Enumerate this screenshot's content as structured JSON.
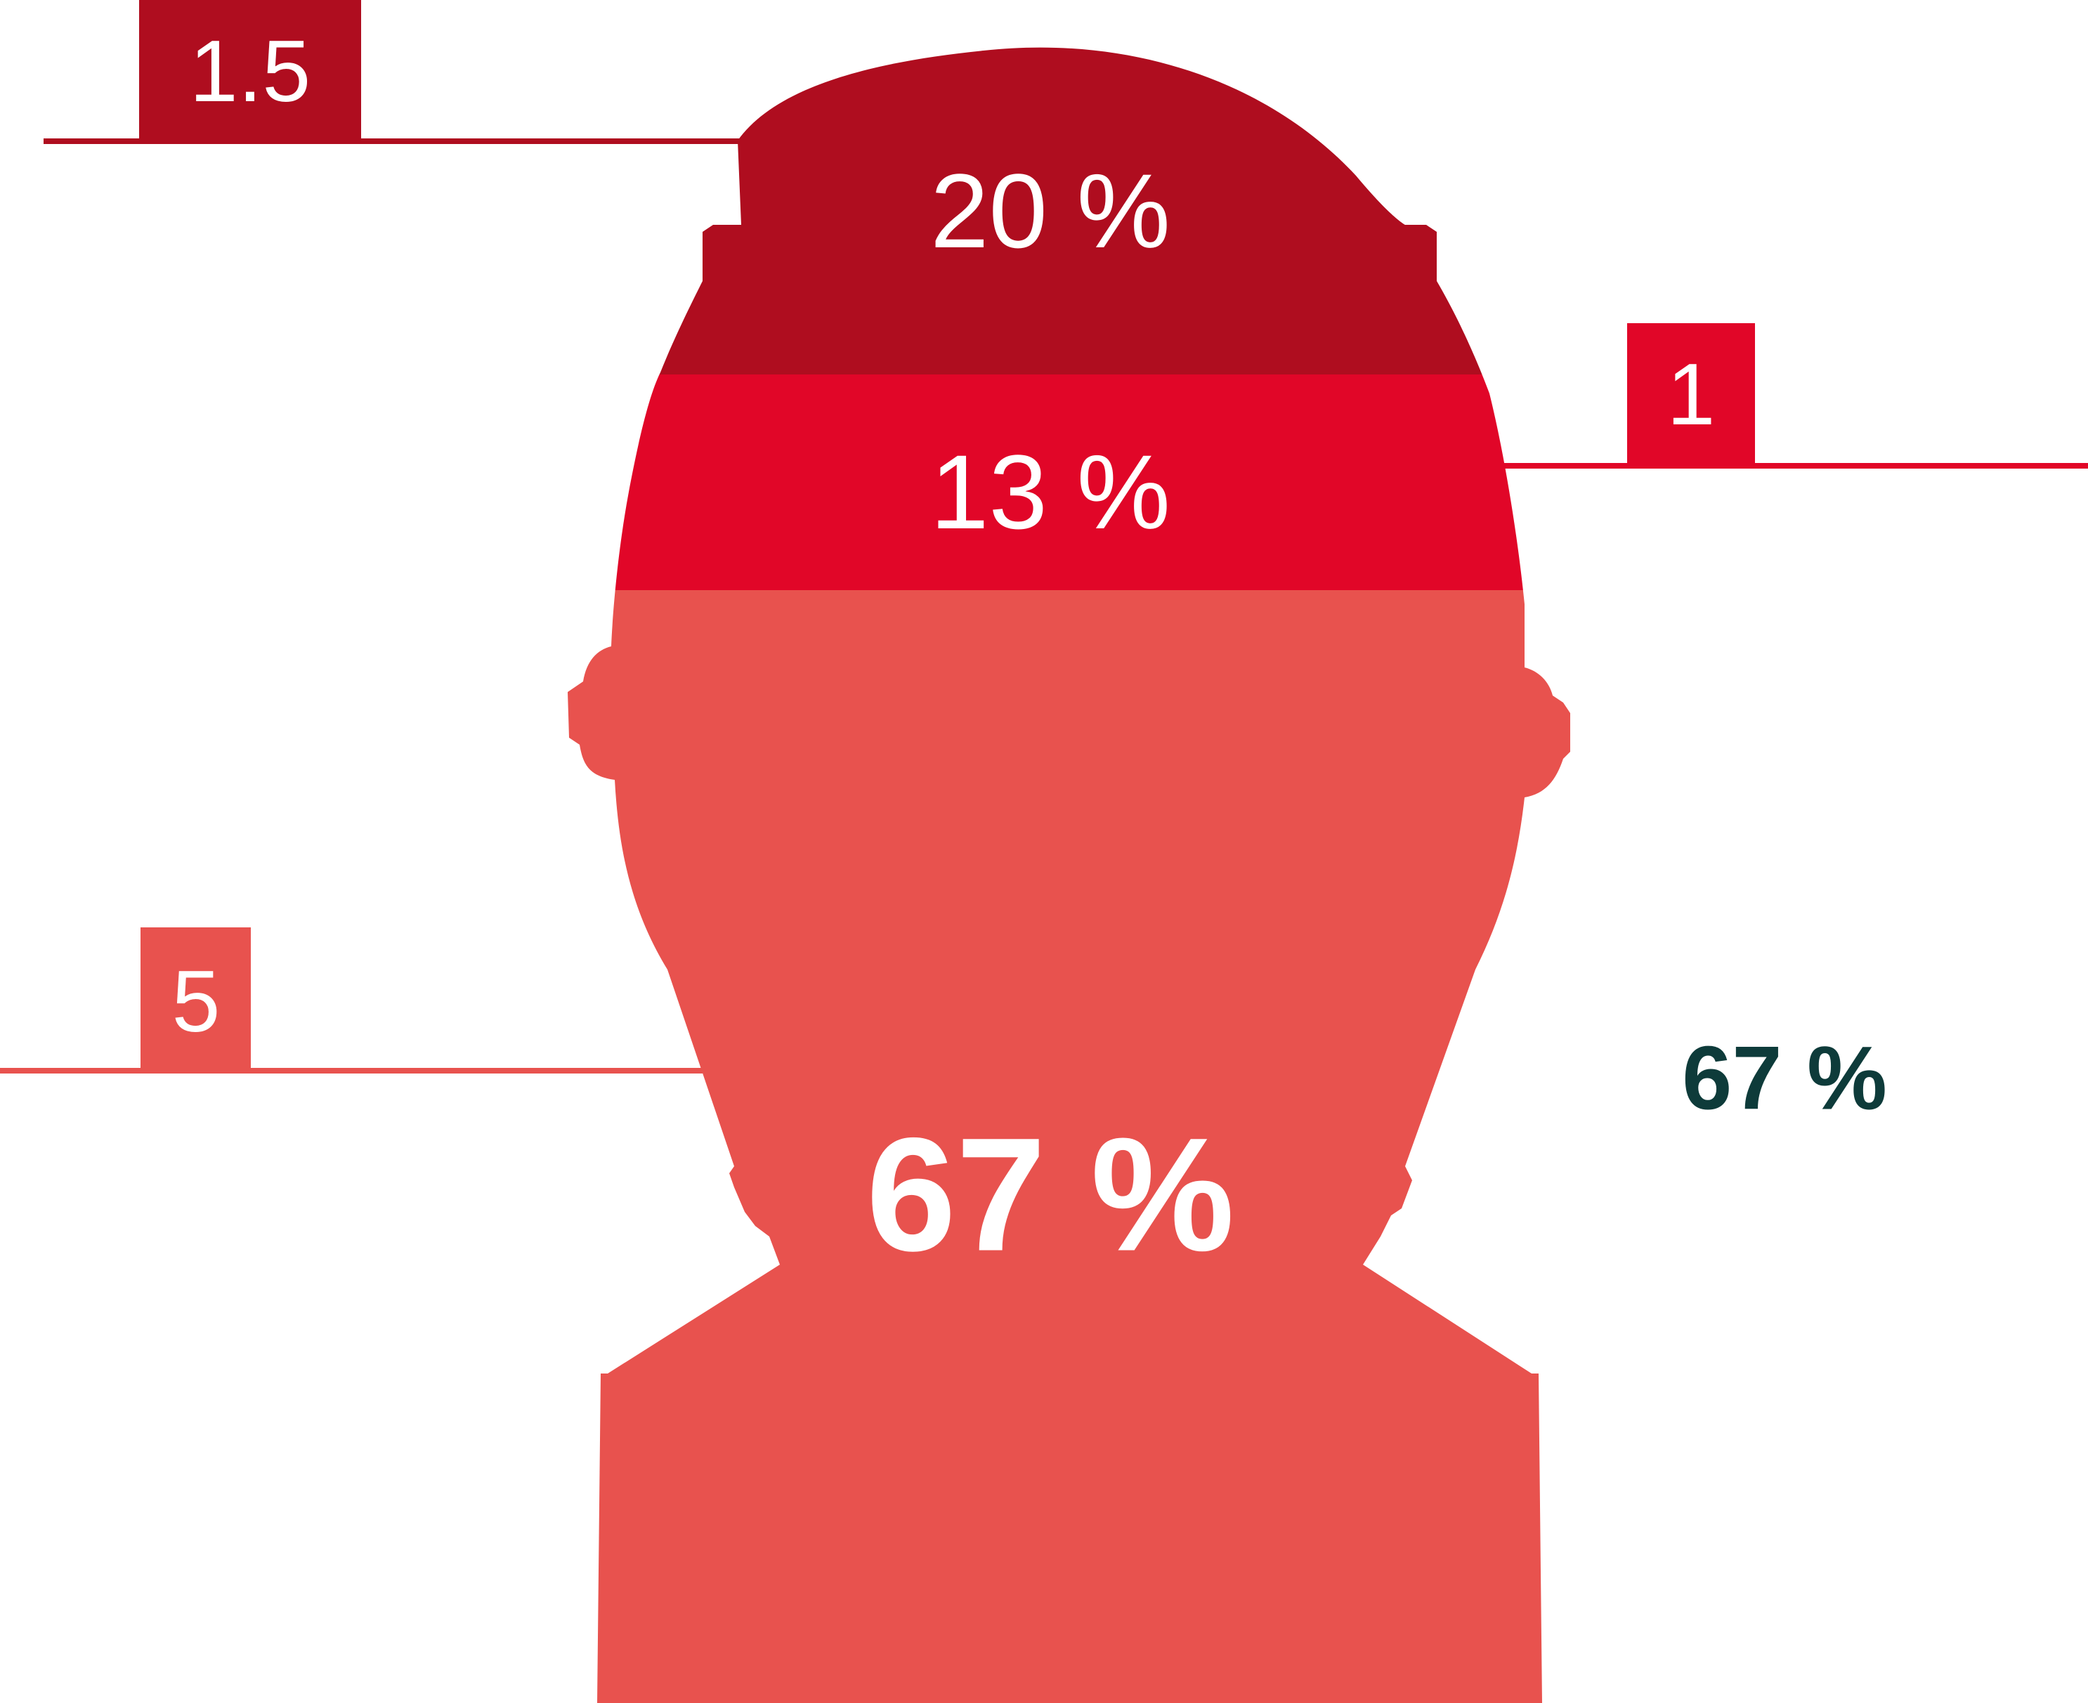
{
  "chart_data": {
    "type": "stacked-figure",
    "segments": [
      {
        "label": "20 %",
        "value": 20,
        "color": "#af0d1f",
        "marker": "1.5"
      },
      {
        "label": "13 %",
        "value": 13,
        "color": "#e10628",
        "marker": "1"
      },
      {
        "label": "67 %",
        "value": 67,
        "color": "#e8524e",
        "marker": "5"
      }
    ],
    "side_label": "67 %",
    "side_label_color": "#0e3b3a"
  }
}
